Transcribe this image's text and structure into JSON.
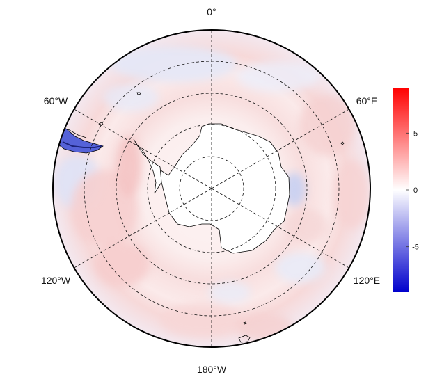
{
  "map": {
    "projection": "south-polar-stereographic",
    "longitude_labels": {
      "top": "0°",
      "upper_left": "60°W",
      "upper_right": "60°E",
      "lower_left": "120°W",
      "lower_right": "120°E",
      "bottom": "180°W"
    },
    "meridians_deg": [
      0,
      60,
      120,
      180,
      240,
      300
    ],
    "latitude_circles": 4,
    "coastline_color": "#000000",
    "grid_style": "dashed"
  },
  "colorbar": {
    "range": [
      -9,
      9
    ],
    "ticks": [
      {
        "value": 5,
        "label": "5"
      },
      {
        "value": 0,
        "label": "0"
      },
      {
        "value": -5,
        "label": "-5"
      }
    ],
    "colors": {
      "max": "#ff0000",
      "mid": "#ffffff",
      "min": "#0000cc"
    }
  }
}
